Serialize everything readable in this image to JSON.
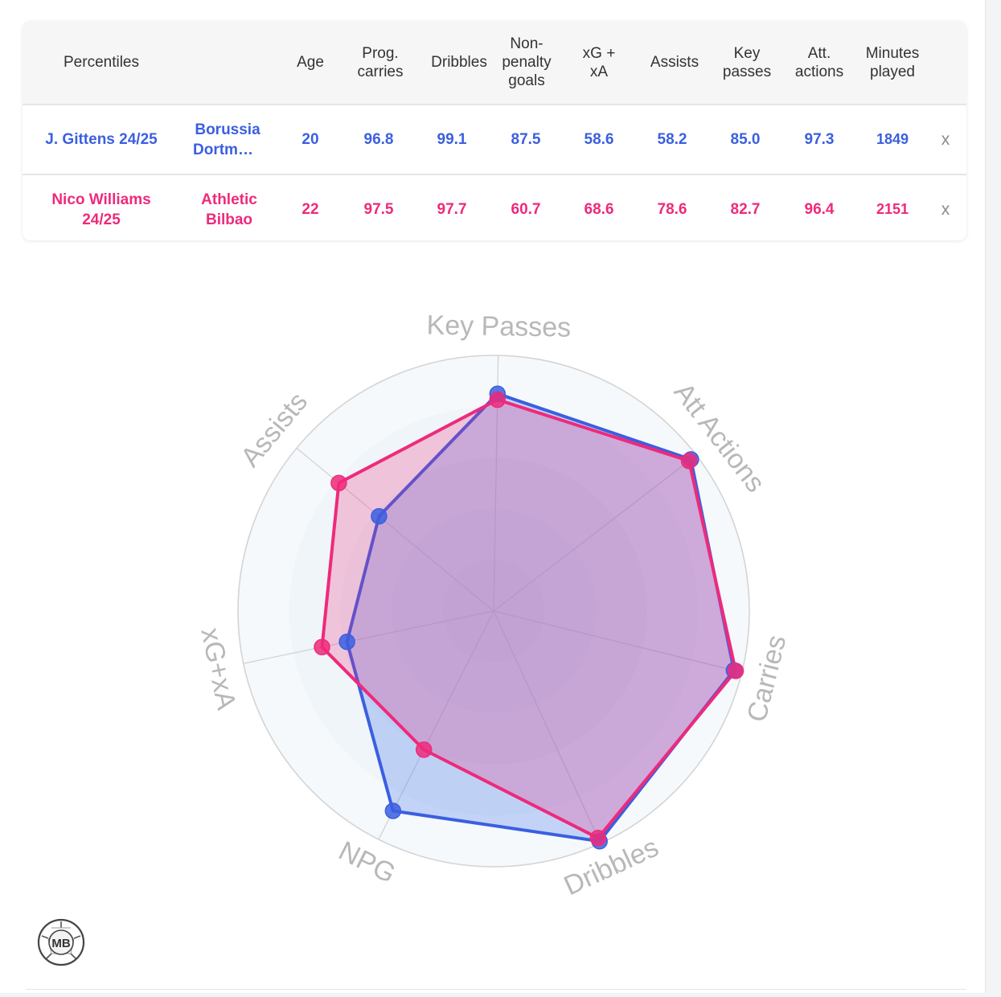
{
  "table": {
    "headers": [
      {
        "key": "percentiles",
        "label": "Percentiles"
      },
      {
        "key": "team",
        "label": ""
      },
      {
        "key": "age",
        "label": "Age"
      },
      {
        "key": "prog_carries",
        "label": "Prog.\ncarries"
      },
      {
        "key": "dribbles",
        "label": "Dribbles"
      },
      {
        "key": "npg",
        "label": "Non-\npenalty\ngoals"
      },
      {
        "key": "xgxa",
        "label": "xG +\nxA"
      },
      {
        "key": "assists",
        "label": "Assists"
      },
      {
        "key": "key_passes",
        "label": "Key\npasses"
      },
      {
        "key": "att_actions",
        "label": "Att.\nactions"
      },
      {
        "key": "minutes",
        "label": "Minutes\nplayed"
      }
    ],
    "rows": [
      {
        "player": "J. Gittens 24/25",
        "team_line1": "Borussia",
        "team_line2": "Dortmund",
        "age": "20",
        "prog_carries": "96.8",
        "dribbles": "99.1",
        "npg": "87.5",
        "xgxa": "58.6",
        "assists": "58.2",
        "key_passes": "85.0",
        "att_actions": "97.3",
        "minutes": "1849",
        "remove": "x",
        "color": "#3b5fe0"
      },
      {
        "player": "Nico Williams 24/25",
        "team_line1": "Athletic",
        "team_line2": "Bilbao",
        "age": "22",
        "prog_carries": "97.5",
        "dribbles": "97.7",
        "npg": "60.7",
        "xgxa": "68.6",
        "assists": "78.6",
        "key_passes": "82.7",
        "att_actions": "96.4",
        "minutes": "2151",
        "remove": "x",
        "color": "#ee2a7b"
      }
    ]
  },
  "chart_data": {
    "type": "radar",
    "axes": [
      "Key Passes",
      "Att Actions",
      "Carries",
      "Dribbles",
      "NPG",
      "xG+xA",
      "Assists"
    ],
    "range": [
      0,
      100
    ],
    "series": [
      {
        "name": "J. Gittens 24/25",
        "values": [
          85.0,
          97.3,
          96.8,
          99.1,
          87.5,
          58.6,
          58.2
        ],
        "color": "#3b5fe0"
      },
      {
        "name": "Nico Williams 24/25",
        "values": [
          82.7,
          96.4,
          97.5,
          97.7,
          60.7,
          68.6,
          78.6
        ],
        "color": "#ee2a7b"
      }
    ]
  },
  "logo": {
    "text": "MB"
  }
}
